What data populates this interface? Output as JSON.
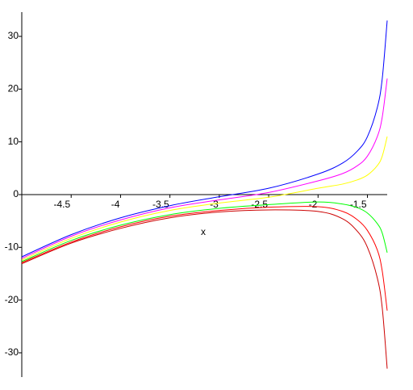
{
  "chart_data": {
    "type": "line",
    "x_label": "x",
    "x": [
      -5,
      -4.5,
      -4,
      -3.5,
      -3,
      -2.5,
      -2,
      -1.75,
      -1.6,
      -1.5,
      -1.4,
      -1.35,
      -1.3
    ],
    "series": [
      {
        "color": "#0000ff",
        "values": [
          -11.8,
          -7.6,
          -4.4,
          -2.1,
          -0.4,
          1.2,
          3.9,
          6,
          8.3,
          11,
          16.5,
          22,
          33
        ]
      },
      {
        "color": "#ff00ff",
        "values": [
          -12.1,
          -7.9,
          -4.8,
          -2.5,
          -1.0,
          0.4,
          2.6,
          4,
          5.5,
          7.3,
          11,
          14.7,
          22
        ]
      },
      {
        "color": "#ffff00",
        "values": [
          -12.4,
          -8.3,
          -5.2,
          -3.0,
          -1.6,
          -0.5,
          1.2,
          2,
          2.8,
          3.7,
          5.5,
          7.3,
          11
        ]
      },
      {
        "color": "#00ff00",
        "values": [
          -12.7,
          -8.7,
          -5.8,
          -3.8,
          -2.6,
          -1.9,
          -1.4,
          -1.8,
          -2.5,
          -3.5,
          -5.5,
          -7.3,
          -11
        ]
      },
      {
        "color": "#ff0000",
        "values": [
          -12.9,
          -9.0,
          -6.1,
          -4.1,
          -3.0,
          -2.4,
          -2.3,
          -3.2,
          -4.8,
          -6.8,
          -10.5,
          -14.5,
          -22
        ]
      },
      {
        "color": "#cc0000",
        "values": [
          -13.1,
          -9.2,
          -6.4,
          -4.4,
          -3.3,
          -2.9,
          -3.2,
          -4.6,
          -7.0,
          -10,
          -15.8,
          -21.5,
          -33
        ]
      }
    ],
    "xlim": [
      -5,
      -1.3
    ],
    "ylim": [
      -34.6,
      34.6
    ],
    "xticks": [
      -4.5,
      -4,
      -3.5,
      -3,
      -2.5,
      -2,
      -1.5
    ],
    "yticks": [
      -30,
      -20,
      -10,
      0,
      10,
      20,
      30
    ]
  }
}
